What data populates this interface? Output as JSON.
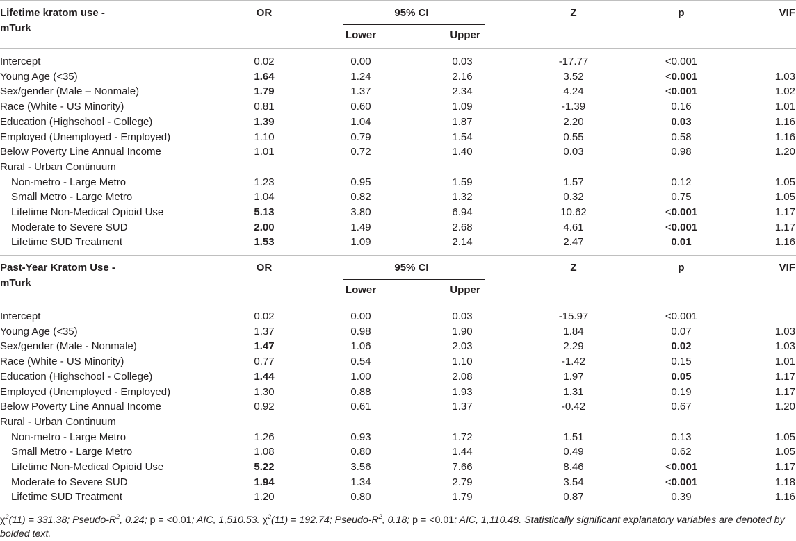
{
  "headers": {
    "or": "OR",
    "ci": "95% CI",
    "lower": "Lower",
    "upper": "Upper",
    "z": "Z",
    "p": "p",
    "vif": "VIF"
  },
  "sections": [
    {
      "title_line1": "Lifetime kratom use -",
      "title_line2": "mTurk",
      "rows": [
        {
          "label": "Intercept",
          "or": "0.02",
          "lower": "0.00",
          "upper": "0.03",
          "z": "-17.77",
          "p_prefix": "<",
          "p": "0.001",
          "vif": ""
        },
        {
          "label": "Young Age (<35)",
          "or": "1.64",
          "or_bold": true,
          "lower": "1.24",
          "upper": "2.16",
          "z": "3.52",
          "p_prefix": "<",
          "p": "0.001",
          "p_bold": true,
          "vif": "1.03"
        },
        {
          "label": "Sex/gender (Male – Nonmale)",
          "or": "1.79",
          "or_bold": true,
          "lower": "1.37",
          "upper": "2.34",
          "z": "4.24",
          "p_prefix": "<",
          "p": "0.001",
          "p_bold": true,
          "vif": "1.02"
        },
        {
          "label": "Race (White - US Minority)",
          "or": "0.81",
          "lower": "0.60",
          "upper": "1.09",
          "z": "-1.39",
          "p": "0.16",
          "vif": "1.01"
        },
        {
          "label": "Education (Highschool - College)",
          "or": "1.39",
          "or_bold": true,
          "lower": "1.04",
          "upper": "1.87",
          "z": "2.20",
          "p": "0.03",
          "p_bold": true,
          "vif": "1.16"
        },
        {
          "label": "Employed (Unemployed - Employed)",
          "or": "1.10",
          "lower": "0.79",
          "upper": "1.54",
          "z": "0.55",
          "p": "0.58",
          "vif": "1.16"
        },
        {
          "label": "Below Poverty Line Annual Income",
          "or": "1.01",
          "lower": "0.72",
          "upper": "1.40",
          "z": "0.03",
          "p": "0.98",
          "vif": "1.20"
        },
        {
          "label": "Rural - Urban Continuum",
          "or": "",
          "lower": "",
          "upper": "",
          "z": "",
          "p": "",
          "vif": ""
        },
        {
          "label": "Non-metro - Large Metro",
          "indent": true,
          "or": "1.23",
          "lower": "0.95",
          "upper": "1.59",
          "z": "1.57",
          "p": "0.12",
          "vif": "1.05"
        },
        {
          "label": "Small Metro - Large Metro",
          "indent": true,
          "or": "1.04",
          "lower": "0.82",
          "upper": "1.32",
          "z": "0.32",
          "p": "0.75",
          "vif": "1.05"
        },
        {
          "label": "Lifetime Non-Medical Opioid Use",
          "indent": true,
          "or": "5.13",
          "or_bold": true,
          "lower": "3.80",
          "upper": "6.94",
          "z": "10.62",
          "p_prefix": "<",
          "p": "0.001",
          "p_bold": true,
          "vif": "1.17"
        },
        {
          "label": "Moderate to Severe SUD",
          "indent": true,
          "or": "2.00",
          "or_bold": true,
          "lower": "1.49",
          "upper": "2.68",
          "z": "4.61",
          "p_prefix": "<",
          "p": "0.001",
          "p_bold": true,
          "vif": "1.17"
        },
        {
          "label": "Lifetime SUD Treatment",
          "indent": true,
          "or": "1.53",
          "or_bold": true,
          "lower": "1.09",
          "upper": "2.14",
          "z": "2.47",
          "p": "0.01",
          "p_bold": true,
          "vif": "1.16"
        }
      ]
    },
    {
      "title_line1": "Past-Year Kratom Use -",
      "title_line2": "mTurk",
      "rows": [
        {
          "label": "Intercept",
          "or": "0.02",
          "lower": "0.00",
          "upper": "0.03",
          "z": "-15.97",
          "p_prefix": "<",
          "p": "0.001",
          "vif": ""
        },
        {
          "label": "Young Age (<35)",
          "or": "1.37",
          "lower": "0.98",
          "upper": "1.90",
          "z": "1.84",
          "p": "0.07",
          "vif": "1.03"
        },
        {
          "label": "Sex/gender (Male - Nonmale)",
          "or": "1.47",
          "or_bold": true,
          "lower": "1.06",
          "upper": "2.03",
          "z": "2.29",
          "p": "0.02",
          "p_bold": true,
          "vif": "1.03"
        },
        {
          "label": "Race (White - US Minority)",
          "or": "0.77",
          "lower": "0.54",
          "upper": "1.10",
          "z": "-1.42",
          "p": "0.15",
          "vif": "1.01"
        },
        {
          "label": "Education (Highschool - College)",
          "or": "1.44",
          "or_bold": true,
          "lower": "1.00",
          "upper": "2.08",
          "z": "1.97",
          "p": "0.05",
          "p_bold": true,
          "vif": "1.17"
        },
        {
          "label": "Employed (Unemployed - Employed)",
          "or": "1.30",
          "lower": "0.88",
          "upper": "1.93",
          "z": "1.31",
          "p": "0.19",
          "vif": "1.17"
        },
        {
          "label": "Below Poverty Line Annual Income",
          "or": "0.92",
          "lower": "0.61",
          "upper": "1.37",
          "z": "-0.42",
          "p": "0.67",
          "vif": "1.20"
        },
        {
          "label": "Rural - Urban Continuum",
          "or": "",
          "lower": "",
          "upper": "",
          "z": "",
          "p": "",
          "vif": ""
        },
        {
          "label": "Non-metro - Large Metro",
          "indent": true,
          "or": "1.26",
          "lower": "0.93",
          "upper": "1.72",
          "z": "1.51",
          "p": "0.13",
          "vif": "1.05"
        },
        {
          "label": "Small Metro - Large Metro",
          "indent": true,
          "or": "1.08",
          "lower": "0.80",
          "upper": "1.44",
          "z": "0.49",
          "p": "0.62",
          "vif": "1.05"
        },
        {
          "label": "Lifetime Non-Medical Opioid Use",
          "indent": true,
          "or": "5.22",
          "or_bold": true,
          "lower": "3.56",
          "upper": "7.66",
          "z": "8.46",
          "p_prefix": "<",
          "p": "0.001",
          "p_bold": true,
          "vif": "1.17"
        },
        {
          "label": "Moderate to Severe SUD",
          "indent": true,
          "or": "1.94",
          "or_bold": true,
          "lower": "1.34",
          "upper": "2.79",
          "z": "3.54",
          "p_prefix": "<",
          "p": "0.001",
          "p_bold": true,
          "vif": "1.18"
        },
        {
          "label": "Lifetime SUD Treatment",
          "indent": true,
          "or": "1.20",
          "lower": "0.80",
          "upper": "1.79",
          "z": "0.87",
          "p": "0.39",
          "vif": "1.16"
        }
      ]
    }
  ],
  "footnote": {
    "chi1": "χ",
    "sq1": "2",
    "stats1a": "(11) = 331.38; Pseudo-R",
    "r2sup1": "2",
    "stats1b": ", 0.24; ",
    "p1": "p = <0.01",
    "aic1": "; AIC, 1,510.53. ",
    "chi2": "χ",
    "sq2": "2",
    "stats2a": "(11) = 192.74; Pseudo-R",
    "r2sup2": "2",
    "stats2b": ", 0.18; ",
    "p2": "p = <0.01",
    "aic2": "; AIC, 1,110.48. Statistically significant explanatory variables are denoted by bolded text."
  }
}
